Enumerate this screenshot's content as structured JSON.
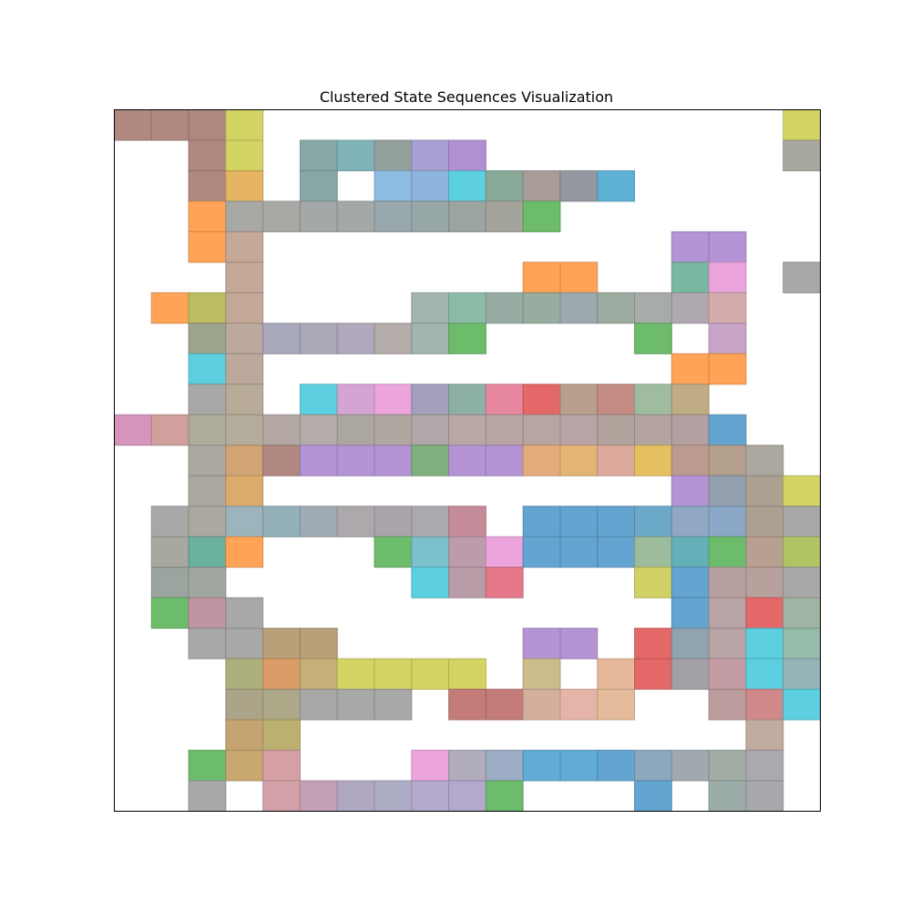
{
  "chart_data": {
    "type": "heatmap",
    "title": "Clustered State Sequences Visualization",
    "xlabel": "",
    "ylabel": "",
    "grid": false,
    "columns": 19,
    "rows": 23,
    "cells": [
      [
        0,
        0,
        "#b08880"
      ],
      [
        1,
        0,
        "#b08880"
      ],
      [
        2,
        0,
        "#b08880"
      ],
      [
        3,
        0,
        "#d4d464"
      ],
      [
        18,
        0,
        "#d4d464"
      ],
      [
        2,
        1,
        "#b08880"
      ],
      [
        3,
        1,
        "#d4d464"
      ],
      [
        5,
        1,
        "#88a8a8"
      ],
      [
        6,
        1,
        "#80b4b8"
      ],
      [
        7,
        1,
        "#94a09c"
      ],
      [
        8,
        1,
        "#a8a0d4"
      ],
      [
        9,
        1,
        "#b090d0"
      ],
      [
        18,
        1,
        "#a8a8a0"
      ],
      [
        2,
        2,
        "#b08880"
      ],
      [
        3,
        2,
        "#e4b460"
      ],
      [
        5,
        2,
        "#88a8a8"
      ],
      [
        7,
        2,
        "#8cbce0"
      ],
      [
        8,
        2,
        "#8cb4dc"
      ],
      [
        9,
        2,
        "#5ccfe0"
      ],
      [
        10,
        2,
        "#88a898"
      ],
      [
        11,
        2,
        "#a89c98"
      ],
      [
        12,
        2,
        "#9498a0"
      ],
      [
        13,
        2,
        "#5eb0d4"
      ],
      [
        2,
        3,
        "#ffa456"
      ],
      [
        3,
        3,
        "#a8a8a4"
      ],
      [
        4,
        3,
        "#a8a8a4"
      ],
      [
        5,
        3,
        "#a4a8a8"
      ],
      [
        6,
        3,
        "#a4a8a8"
      ],
      [
        7,
        3,
        "#98a8ac"
      ],
      [
        8,
        3,
        "#98a8a8"
      ],
      [
        9,
        3,
        "#9ca4a0"
      ],
      [
        10,
        3,
        "#a4a49c"
      ],
      [
        11,
        3,
        "#6cbc6c"
      ],
      [
        2,
        4,
        "#ffa456"
      ],
      [
        3,
        4,
        "#c4a898"
      ],
      [
        15,
        4,
        "#b494d4"
      ],
      [
        16,
        4,
        "#b494d4"
      ],
      [
        3,
        5,
        "#c4a898"
      ],
      [
        11,
        5,
        "#ffa456"
      ],
      [
        12,
        5,
        "#ffa456"
      ],
      [
        15,
        5,
        "#78b8a0"
      ],
      [
        16,
        5,
        "#eca4dc"
      ],
      [
        18,
        5,
        "#a8a8a8"
      ],
      [
        1,
        6,
        "#ffa456"
      ],
      [
        2,
        6,
        "#bcbc60"
      ],
      [
        3,
        6,
        "#c4a898"
      ],
      [
        8,
        6,
        "#a4b4b0"
      ],
      [
        9,
        6,
        "#8cbca8"
      ],
      [
        10,
        6,
        "#98aca4"
      ],
      [
        11,
        6,
        "#98aca0"
      ],
      [
        12,
        6,
        "#9caab0"
      ],
      [
        13,
        6,
        "#9caca0"
      ],
      [
        14,
        6,
        "#a8aca8"
      ],
      [
        15,
        6,
        "#b0a8b0"
      ],
      [
        16,
        6,
        "#d4acac"
      ],
      [
        2,
        7,
        "#9ca48c"
      ],
      [
        3,
        7,
        "#bca89c"
      ],
      [
        4,
        7,
        "#a8a8bc"
      ],
      [
        5,
        7,
        "#aca8b8"
      ],
      [
        6,
        7,
        "#b0a8bc"
      ],
      [
        7,
        7,
        "#b4aca8"
      ],
      [
        8,
        7,
        "#a0b4b0"
      ],
      [
        9,
        7,
        "#6cbc6c"
      ],
      [
        14,
        7,
        "#6cbc6c"
      ],
      [
        16,
        7,
        "#c8a4c8"
      ],
      [
        2,
        8,
        "#5ccfe0"
      ],
      [
        3,
        8,
        "#bca89c"
      ],
      [
        15,
        8,
        "#ffa456"
      ],
      [
        16,
        8,
        "#ffa456"
      ],
      [
        2,
        9,
        "#a8a8a8"
      ],
      [
        3,
        9,
        "#b8ac98"
      ],
      [
        5,
        9,
        "#5ccfe0"
      ],
      [
        6,
        9,
        "#d4a4d4"
      ],
      [
        7,
        9,
        "#eca4dc"
      ],
      [
        8,
        9,
        "#a4a0bc"
      ],
      [
        9,
        9,
        "#8cb0a4"
      ],
      [
        10,
        9,
        "#e888a0"
      ],
      [
        11,
        9,
        "#e46868"
      ],
      [
        12,
        9,
        "#b8a08c"
      ],
      [
        13,
        9,
        "#c48c84"
      ],
      [
        14,
        9,
        "#a0bca0"
      ],
      [
        15,
        9,
        "#c0ac84"
      ],
      [
        0,
        10,
        "#d494bc"
      ],
      [
        1,
        10,
        "#d0a09c"
      ],
      [
        2,
        10,
        "#b0ac9c"
      ],
      [
        3,
        10,
        "#b4ac9c"
      ],
      [
        4,
        10,
        "#b4a8a4"
      ],
      [
        5,
        10,
        "#b4aca8"
      ],
      [
        6,
        10,
        "#aca8a0"
      ],
      [
        7,
        10,
        "#b0a8a0"
      ],
      [
        8,
        10,
        "#b0a8a8"
      ],
      [
        9,
        10,
        "#b8a8a4"
      ],
      [
        10,
        10,
        "#b8a4a0"
      ],
      [
        11,
        10,
        "#b8a4a0"
      ],
      [
        12,
        10,
        "#b8a4a4"
      ],
      [
        13,
        10,
        "#b0a49c"
      ],
      [
        14,
        10,
        "#b4a4a0"
      ],
      [
        15,
        10,
        "#b4a0a0"
      ],
      [
        16,
        10,
        "#64a4d0"
      ],
      [
        2,
        11,
        "#aca8a0"
      ],
      [
        3,
        11,
        "#d0a474"
      ],
      [
        4,
        11,
        "#b08880"
      ],
      [
        5,
        11,
        "#b494d4"
      ],
      [
        6,
        11,
        "#b494d4"
      ],
      [
        7,
        11,
        "#b494d4"
      ],
      [
        8,
        11,
        "#80b080"
      ],
      [
        9,
        11,
        "#b494d4"
      ],
      [
        10,
        11,
        "#b494d4"
      ],
      [
        11,
        11,
        "#e4ac7c"
      ],
      [
        12,
        11,
        "#e4b474"
      ],
      [
        13,
        11,
        "#dcaa9c"
      ],
      [
        14,
        11,
        "#e4c060"
      ],
      [
        15,
        11,
        "#bc9c90"
      ],
      [
        16,
        11,
        "#b4a08c"
      ],
      [
        17,
        11,
        "#aca8a0"
      ],
      [
        2,
        12,
        "#aca8a0"
      ],
      [
        3,
        12,
        "#dcac6c"
      ],
      [
        15,
        12,
        "#b494d4"
      ],
      [
        16,
        12,
        "#94a0b0"
      ],
      [
        17,
        12,
        "#aca090"
      ],
      [
        18,
        12,
        "#d4d464"
      ],
      [
        1,
        13,
        "#a8a8a8"
      ],
      [
        2,
        13,
        "#aca8a0"
      ],
      [
        3,
        13,
        "#9cb4bc"
      ],
      [
        4,
        13,
        "#94b0b8"
      ],
      [
        5,
        13,
        "#a0acb4"
      ],
      [
        6,
        13,
        "#aca8ac"
      ],
      [
        7,
        13,
        "#aca4ac"
      ],
      [
        8,
        13,
        "#aca8b0"
      ],
      [
        9,
        13,
        "#c48c98"
      ],
      [
        11,
        13,
        "#64a4d0"
      ],
      [
        12,
        13,
        "#64a4d0"
      ],
      [
        13,
        13,
        "#64a4d0"
      ],
      [
        14,
        13,
        "#6ca8c8"
      ],
      [
        15,
        13,
        "#90a8c4"
      ],
      [
        16,
        13,
        "#8ca8c8"
      ],
      [
        17,
        13,
        "#aca090"
      ],
      [
        18,
        13,
        "#a8a8a8"
      ],
      [
        1,
        14,
        "#a8a8a0"
      ],
      [
        2,
        14,
        "#6cb0a0"
      ],
      [
        3,
        14,
        "#ffa456"
      ],
      [
        7,
        14,
        "#6cbc6c"
      ],
      [
        8,
        14,
        "#7cc0cc"
      ],
      [
        9,
        14,
        "#bc9cac"
      ],
      [
        10,
        14,
        "#eca4dc"
      ],
      [
        11,
        14,
        "#64a4d0"
      ],
      [
        12,
        14,
        "#64a4d0"
      ],
      [
        13,
        14,
        "#64a4d0"
      ],
      [
        14,
        14,
        "#9cbc9c"
      ],
      [
        15,
        14,
        "#64b0b8"
      ],
      [
        16,
        14,
        "#6cbc6c"
      ],
      [
        17,
        14,
        "#b8a090"
      ],
      [
        18,
        14,
        "#b0c464"
      ],
      [
        1,
        15,
        "#9ca4a0"
      ],
      [
        2,
        15,
        "#a0a8a0"
      ],
      [
        8,
        15,
        "#5ccfe0"
      ],
      [
        9,
        15,
        "#b89ca8"
      ],
      [
        10,
        15,
        "#e47888"
      ],
      [
        14,
        15,
        "#d0d064"
      ],
      [
        15,
        15,
        "#64a4d0"
      ],
      [
        16,
        15,
        "#b8a0a0"
      ],
      [
        17,
        15,
        "#b8a09c"
      ],
      [
        18,
        15,
        "#a8a8a8"
      ],
      [
        1,
        16,
        "#6cbc6c"
      ],
      [
        2,
        16,
        "#c094a0"
      ],
      [
        3,
        16,
        "#a8a8a8"
      ],
      [
        15,
        16,
        "#64a4d0"
      ],
      [
        16,
        16,
        "#b8a4a4"
      ],
      [
        17,
        16,
        "#e46868"
      ],
      [
        18,
        16,
        "#a0b4a4"
      ],
      [
        2,
        17,
        "#a8a8a8"
      ],
      [
        3,
        17,
        "#a8a8a8"
      ],
      [
        4,
        17,
        "#b8a078"
      ],
      [
        5,
        17,
        "#b8a078"
      ],
      [
        11,
        17,
        "#b494d4"
      ],
      [
        12,
        17,
        "#b494d4"
      ],
      [
        14,
        17,
        "#e46868"
      ],
      [
        15,
        17,
        "#90a4b0"
      ],
      [
        16,
        17,
        "#b8a4a4"
      ],
      [
        17,
        17,
        "#5ccfe0"
      ],
      [
        18,
        17,
        "#94bca8"
      ],
      [
        3,
        18,
        "#acb07c"
      ],
      [
        4,
        18,
        "#dc9c68"
      ],
      [
        5,
        18,
        "#c4b078"
      ],
      [
        6,
        18,
        "#d4d464"
      ],
      [
        7,
        18,
        "#d4d464"
      ],
      [
        8,
        18,
        "#d4d464"
      ],
      [
        9,
        18,
        "#d4d464"
      ],
      [
        11,
        18,
        "#ccbc8c"
      ],
      [
        13,
        18,
        "#e4b898"
      ],
      [
        14,
        18,
        "#e46868"
      ],
      [
        15,
        18,
        "#a4a0a8"
      ],
      [
        16,
        18,
        "#c49ca4"
      ],
      [
        17,
        18,
        "#5ccfe0"
      ],
      [
        18,
        18,
        "#94b4b8"
      ],
      [
        3,
        19,
        "#aca488"
      ],
      [
        4,
        19,
        "#aca888"
      ],
      [
        5,
        19,
        "#a8a8a8"
      ],
      [
        6,
        19,
        "#a8a8a8"
      ],
      [
        7,
        19,
        "#a8a8a8"
      ],
      [
        9,
        19,
        "#c47c78"
      ],
      [
        10,
        19,
        "#c47c78"
      ],
      [
        11,
        19,
        "#d4b09c"
      ],
      [
        12,
        19,
        "#e4b4a8"
      ],
      [
        13,
        19,
        "#e4bc9c"
      ],
      [
        16,
        19,
        "#bc9c9c"
      ],
      [
        17,
        19,
        "#d08888"
      ],
      [
        18,
        19,
        "#5ccfe0"
      ],
      [
        3,
        20,
        "#c4a470"
      ],
      [
        4,
        20,
        "#bcb070"
      ],
      [
        17,
        20,
        "#c0aca0"
      ],
      [
        2,
        21,
        "#6cbc6c"
      ],
      [
        3,
        21,
        "#c8a870"
      ],
      [
        4,
        21,
        "#d4a0a4"
      ],
      [
        8,
        21,
        "#eca4dc"
      ],
      [
        9,
        21,
        "#b0acbc"
      ],
      [
        10,
        21,
        "#9cacc4"
      ],
      [
        11,
        21,
        "#60acd4"
      ],
      [
        12,
        21,
        "#60acd4"
      ],
      [
        13,
        21,
        "#64a4d0"
      ],
      [
        14,
        21,
        "#8ca8bc"
      ],
      [
        15,
        21,
        "#a0a8b0"
      ],
      [
        16,
        21,
        "#a0aca4"
      ],
      [
        17,
        21,
        "#aca8b0"
      ],
      [
        2,
        22,
        "#a8a8a8"
      ],
      [
        4,
        22,
        "#d4a0a8"
      ],
      [
        5,
        22,
        "#c4a0b4"
      ],
      [
        6,
        22,
        "#b0a8c0"
      ],
      [
        7,
        22,
        "#acacc4"
      ],
      [
        8,
        22,
        "#b4aacc"
      ],
      [
        9,
        22,
        "#b4a8cc"
      ],
      [
        10,
        22,
        "#6cbc6c"
      ],
      [
        14,
        22,
        "#64a4d0"
      ],
      [
        16,
        22,
        "#9caca8"
      ],
      [
        17,
        22,
        "#a8a8ac"
      ]
    ]
  }
}
